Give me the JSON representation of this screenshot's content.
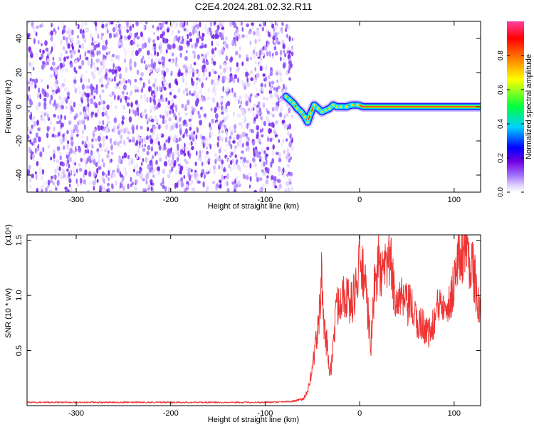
{
  "figure_title": "C2E4.2024.281.02.32.R11",
  "chart_data": [
    {
      "type": "heatmap",
      "title": "",
      "xlabel": "Height of straight line (km)",
      "ylabel": "Frequency (Hz)",
      "xlim": [
        -352,
        128
      ],
      "ylim": [
        -50,
        50
      ],
      "x_ticks": [
        -300,
        -200,
        -100,
        0,
        100
      ],
      "y_ticks": [
        -40,
        -20,
        0,
        20,
        40
      ],
      "noise_region_x": [
        -352,
        -74
      ],
      "signal_trace": [
        {
          "x": -78,
          "y": 6
        },
        {
          "x": -74,
          "y": 4
        },
        {
          "x": -70,
          "y": 2
        },
        {
          "x": -66,
          "y": -1
        },
        {
          "x": -62,
          "y": -3
        },
        {
          "x": -58,
          "y": -6
        },
        {
          "x": -55,
          "y": -9
        },
        {
          "x": -52,
          "y": -4
        },
        {
          "x": -48,
          "y": 1
        },
        {
          "x": -44,
          "y": -1
        },
        {
          "x": -40,
          "y": -3
        },
        {
          "x": -36,
          "y": -2
        },
        {
          "x": -32,
          "y": -1
        },
        {
          "x": -28,
          "y": 1
        },
        {
          "x": -24,
          "y": 0
        },
        {
          "x": -20,
          "y": 0
        },
        {
          "x": -14,
          "y": 0
        },
        {
          "x": -8,
          "y": 1
        },
        {
          "x": -2,
          "y": 1
        },
        {
          "x": 4,
          "y": 0
        },
        {
          "x": 128,
          "y": 0
        }
      ],
      "colorbar": {
        "label": "Normalized spectral amplitude",
        "range": [
          0,
          1
        ],
        "ticks": [
          "0.0",
          "0.2",
          "0.4",
          "0.6",
          "0.8"
        ],
        "tick_values": [
          0,
          0.2,
          0.4,
          0.6,
          0.8
        ],
        "colors": [
          "#ffffff",
          "#e0d0ff",
          "#a070ff",
          "#7000e0",
          "#0000ff",
          "#00d0ff",
          "#00ff40",
          "#ffff00",
          "#ff8000",
          "#ff0000",
          "#ff40a0"
        ]
      }
    },
    {
      "type": "line",
      "title": "",
      "xlabel": "Height of straight line (km)",
      "ylabel": "SNR (10 * v/v)",
      "scale_label": "(x10⁴)",
      "xlim": [
        -352,
        128
      ],
      "ylim": [
        0,
        1.55
      ],
      "x_ticks": [
        -300,
        -200,
        -100,
        0,
        100
      ],
      "y_ticks": [
        0.5,
        1.0,
        1.5
      ],
      "y_tick_labels": [
        "0.5",
        "1.0",
        "1.5"
      ],
      "series": [
        {
          "color": "#ee3333",
          "x": [
            -352,
            -300,
            -250,
            -200,
            -150,
            -100,
            -70,
            -60,
            -55,
            -50,
            -47,
            -44,
            -42,
            -40,
            -38,
            -36,
            -34,
            -32,
            -30,
            -28,
            -25,
            -22,
            -18,
            -14,
            -10,
            -6,
            -2,
            0,
            4,
            8,
            12,
            16,
            20,
            24,
            28,
            32,
            36,
            40,
            45,
            50,
            55,
            60,
            65,
            70,
            75,
            80,
            85,
            90,
            95,
            100,
            104,
            108,
            112,
            116,
            120,
            124,
            128
          ],
          "y": [
            0.03,
            0.03,
            0.03,
            0.03,
            0.03,
            0.03,
            0.04,
            0.06,
            0.12,
            0.35,
            0.55,
            0.7,
            0.9,
            1.2,
            0.75,
            0.6,
            0.55,
            0.3,
            0.35,
            0.55,
            0.85,
            0.95,
            1.05,
            1.0,
            0.9,
            1.0,
            1.15,
            1.3,
            1.2,
            0.9,
            0.55,
            1.1,
            1.3,
            1.15,
            1.25,
            1.35,
            1.05,
            1.0,
            0.95,
            0.9,
            0.9,
            0.75,
            0.75,
            0.7,
            0.65,
            0.8,
            0.95,
            1.0,
            0.9,
            1.15,
            1.3,
            1.4,
            1.45,
            1.35,
            1.25,
            1.0,
            0.75
          ]
        }
      ]
    }
  ]
}
